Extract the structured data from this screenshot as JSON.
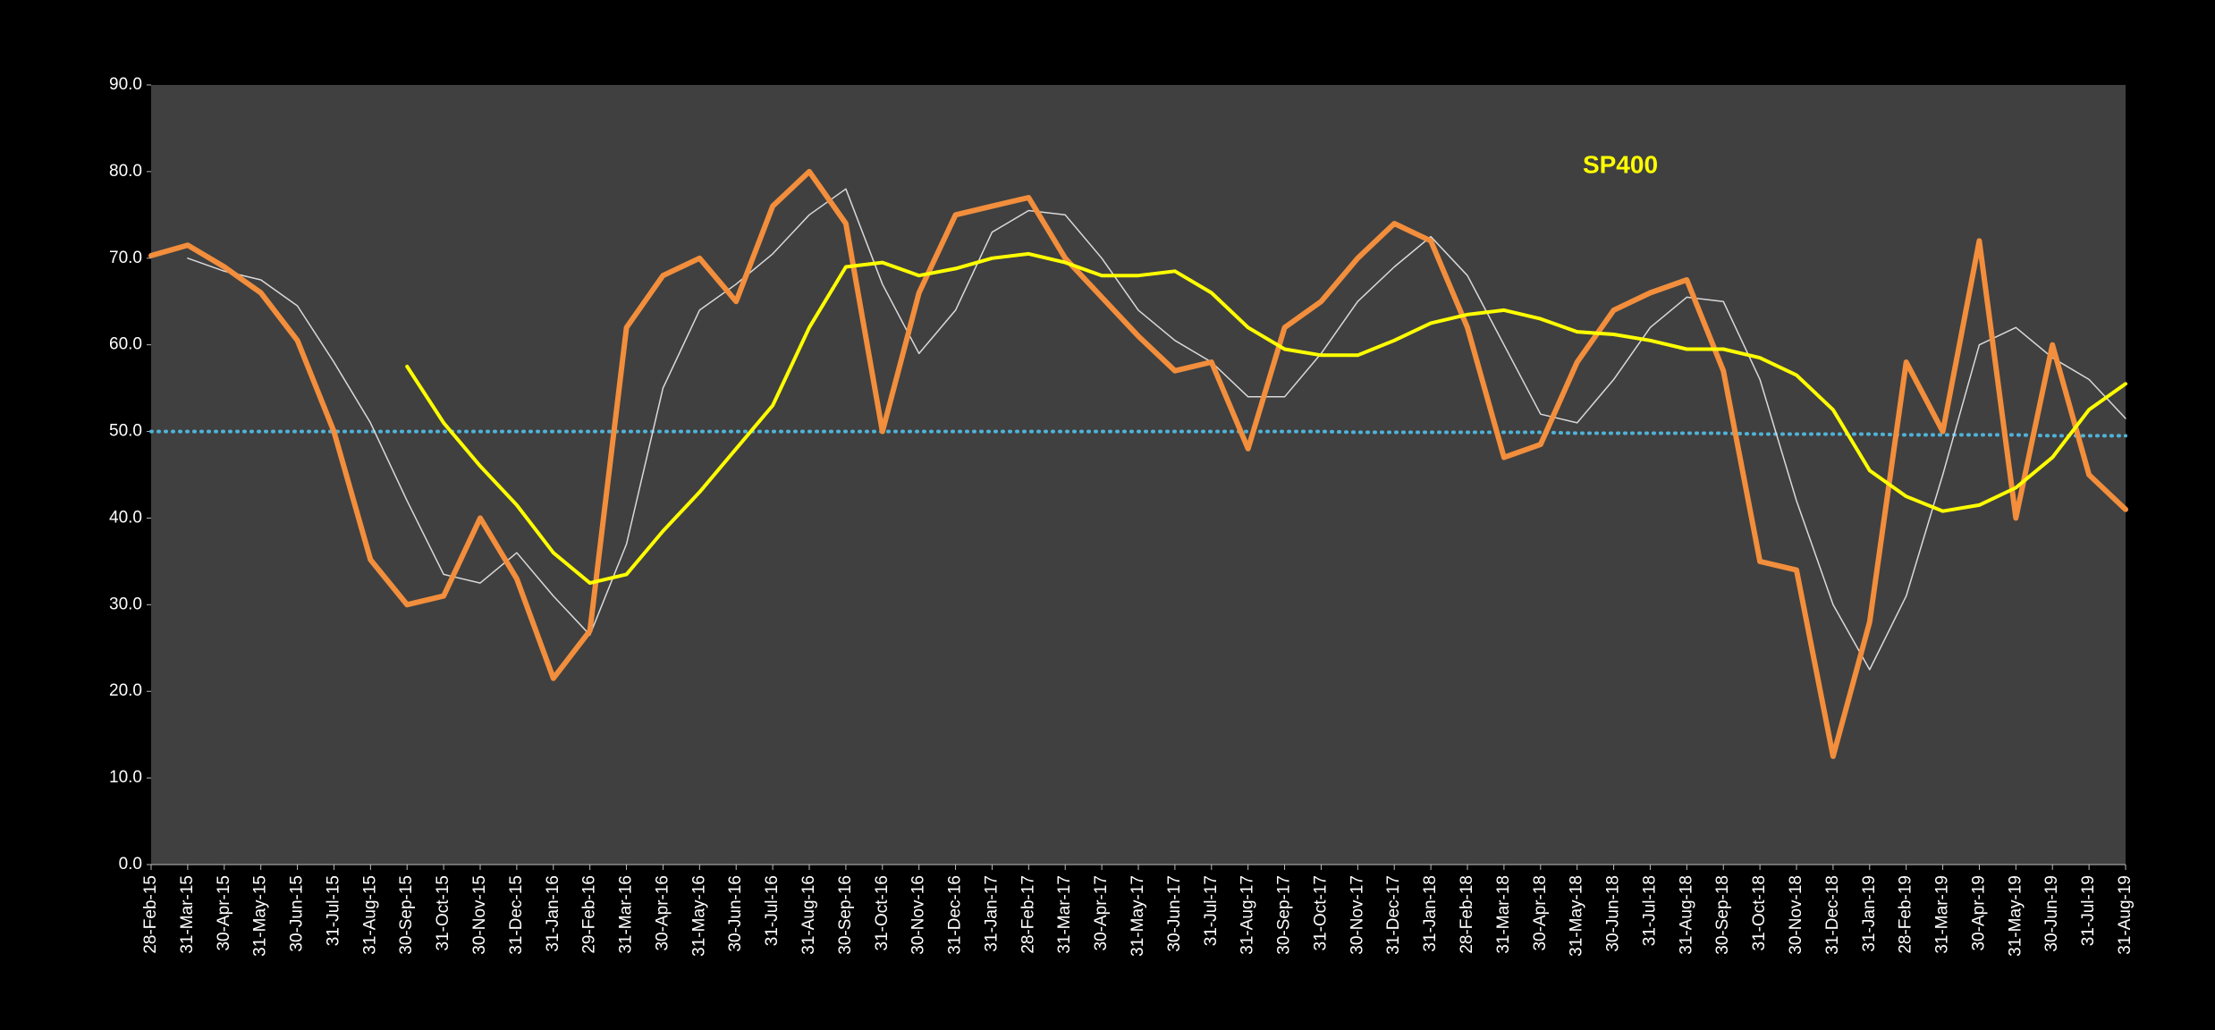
{
  "chart_data": {
    "type": "line",
    "title": "SP400",
    "categories": [
      "28-Feb-15",
      "31-Mar-15",
      "30-Apr-15",
      "31-May-15",
      "30-Jun-15",
      "31-Jul-15",
      "31-Aug-15",
      "30-Sep-15",
      "31-Oct-15",
      "30-Nov-15",
      "31-Dec-15",
      "31-Jan-16",
      "29-Feb-16",
      "31-Mar-16",
      "30-Apr-16",
      "31-May-16",
      "30-Jun-16",
      "31-Jul-16",
      "31-Aug-16",
      "30-Sep-16",
      "31-Oct-16",
      "30-Nov-16",
      "31-Dec-16",
      "31-Jan-17",
      "28-Feb-17",
      "31-Mar-17",
      "30-Apr-17",
      "31-May-17",
      "30-Jun-17",
      "31-Jul-17",
      "31-Aug-17",
      "30-Sep-17",
      "31-Oct-17",
      "30-Nov-17",
      "31-Dec-17",
      "31-Jan-18",
      "28-Feb-18",
      "31-Mar-18",
      "30-Apr-18",
      "31-May-18",
      "30-Jun-18",
      "31-Jul-18",
      "31-Aug-18",
      "30-Sep-18",
      "31-Oct-18",
      "30-Nov-18",
      "31-Dec-18",
      "31-Jan-19",
      "28-Feb-19",
      "31-Mar-19",
      "30-Apr-19",
      "31-May-19",
      "30-Jun-19",
      "31-Jul-19",
      "31-Aug-19"
    ],
    "series": [
      {
        "color": "#4fb3d9",
        "dash": true,
        "width": 4,
        "values": [
          50,
          50,
          50,
          50,
          50,
          50,
          50,
          50,
          50,
          50,
          50,
          50,
          50,
          50,
          50,
          50,
          50,
          50,
          50,
          50,
          50,
          50,
          50,
          50,
          50,
          50,
          50,
          50,
          50,
          50,
          50,
          50,
          50,
          49.9,
          49.9,
          49.9,
          49.9,
          49.9,
          49.9,
          49.8,
          49.8,
          49.8,
          49.8,
          49.8,
          49.7,
          49.7,
          49.7,
          49.7,
          49.6,
          49.6,
          49.6,
          49.6,
          49.5,
          49.5,
          49.5
        ]
      },
      {
        "color": "#d9d9d9",
        "width": 1.5,
        "values": [
          null,
          70,
          68.5,
          67.5,
          64.5,
          58,
          51,
          42,
          33.5,
          32.5,
          36,
          31,
          26.5,
          37,
          55,
          64,
          67,
          70.5,
          75,
          78,
          67,
          59,
          64,
          73,
          75.5,
          75,
          70,
          64,
          60.5,
          58,
          54,
          54,
          59,
          65,
          69,
          72.5,
          68,
          60,
          52,
          51,
          56,
          62,
          65.5,
          65,
          56,
          42,
          30,
          22.5,
          31,
          45,
          60,
          62,
          58.5,
          56,
          51.5
        ]
      },
      {
        "color": "#f28e3c",
        "width": 6,
        "values": [
          70.3,
          71.5,
          69,
          66,
          60.5,
          50,
          35.2,
          30,
          31,
          40,
          33,
          21.5,
          27,
          62,
          68,
          70,
          65,
          76,
          80,
          74,
          50,
          66,
          75,
          76,
          77,
          70,
          65.5,
          61,
          57,
          58,
          48,
          62,
          65,
          70,
          74,
          72,
          62,
          47,
          48.5,
          58,
          64,
          66,
          67.5,
          57,
          35,
          34,
          12.5,
          28,
          58,
          50,
          72,
          40,
          60,
          45,
          41
        ]
      },
      {
        "color": "#ffff00",
        "width": 4,
        "values": [
          null,
          null,
          null,
          null,
          null,
          null,
          null,
          57.5,
          51,
          46,
          41.5,
          36,
          32.5,
          33.5,
          38.5,
          43,
          48,
          53,
          62,
          69,
          69.5,
          68,
          68.8,
          70,
          70.5,
          69.5,
          68,
          68,
          68.5,
          66,
          62,
          59.5,
          58.8,
          58.8,
          60.5,
          62.5,
          63.5,
          64,
          63,
          61.5,
          61.2,
          60.5,
          59.5,
          59.5,
          58.5,
          56.5,
          52.5,
          45.5,
          42.5,
          40.8,
          41.5,
          43.5,
          47,
          52.5,
          55.5
        ]
      }
    ],
    "ylim": [
      0,
      90
    ],
    "yticks": [
      {
        "value": 0,
        "label": "0.0"
      },
      {
        "value": 10,
        "label": "10.0"
      },
      {
        "value": 20,
        "label": "20.0"
      },
      {
        "value": 30,
        "label": "30.0"
      },
      {
        "value": 40,
        "label": "40.0"
      },
      {
        "value": 50,
        "label": "50.0"
      },
      {
        "value": 60,
        "label": "60.0"
      },
      {
        "value": 70,
        "label": "70.0"
      },
      {
        "value": 80,
        "label": "80.0"
      },
      {
        "value": 90,
        "label": "90.0"
      }
    ],
    "title_color": "#ffff00",
    "plot_background": "#404040"
  }
}
